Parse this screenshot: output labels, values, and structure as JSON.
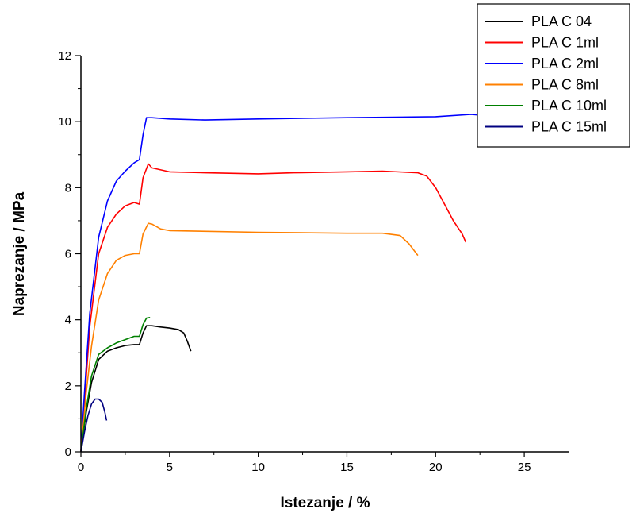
{
  "chart_data": {
    "type": "line",
    "title": "",
    "xlabel": "Istezanje / %",
    "ylabel": "Naprezanje / MPa",
    "xlim": [
      0,
      27.5
    ],
    "ylim": [
      0,
      12
    ],
    "xticks": [
      "0",
      "5",
      "10",
      "15",
      "20",
      "25"
    ],
    "yticks": [
      "0",
      "2",
      "4",
      "6",
      "8",
      "10",
      "12"
    ],
    "grid": false,
    "legend_position": "top-right",
    "series": [
      {
        "name": "PLA C 04",
        "color": "#000000",
        "x": [
          0,
          0.3,
          0.6,
          1.0,
          1.5,
          2.0,
          2.5,
          3.0,
          3.3,
          3.5,
          3.7,
          4.0,
          4.5,
          5.0,
          5.5,
          5.8,
          6.0,
          6.2
        ],
        "y": [
          0,
          1.2,
          2.1,
          2.8,
          3.05,
          3.15,
          3.22,
          3.25,
          3.25,
          3.6,
          3.82,
          3.82,
          3.78,
          3.75,
          3.7,
          3.6,
          3.35,
          3.05
        ]
      },
      {
        "name": "PLA C 1ml",
        "color": "#ff0000",
        "x": [
          0,
          0.2,
          0.5,
          1.0,
          1.5,
          2.0,
          2.5,
          3.0,
          3.3,
          3.5,
          3.8,
          4.0,
          5,
          7,
          10,
          12,
          15,
          17,
          19,
          19.5,
          20,
          20.5,
          21,
          21.5,
          21.7
        ],
        "y": [
          0,
          1.5,
          3.8,
          6.0,
          6.8,
          7.2,
          7.45,
          7.55,
          7.5,
          8.3,
          8.72,
          8.6,
          8.48,
          8.45,
          8.42,
          8.45,
          8.48,
          8.5,
          8.45,
          8.35,
          8.0,
          7.5,
          7.0,
          6.6,
          6.35
        ]
      },
      {
        "name": "PLA C 2ml",
        "color": "#0000ff",
        "x": [
          0,
          0.2,
          0.5,
          1.0,
          1.5,
          2.0,
          2.5,
          3.0,
          3.3,
          3.5,
          3.7,
          4.0,
          5,
          7,
          10,
          15,
          20,
          22,
          22.5
        ],
        "y": [
          0,
          1.8,
          4.2,
          6.5,
          7.6,
          8.2,
          8.5,
          8.75,
          8.85,
          9.6,
          10.12,
          10.12,
          10.08,
          10.05,
          10.08,
          10.12,
          10.15,
          10.22,
          10.2
        ]
      },
      {
        "name": "PLA C 8ml",
        "color": "#ff8000",
        "x": [
          0,
          0.3,
          0.6,
          1.0,
          1.5,
          2.0,
          2.5,
          3.0,
          3.3,
          3.5,
          3.8,
          4.0,
          4.5,
          5,
          10,
          15,
          17,
          18,
          18.5,
          19.0
        ],
        "y": [
          0,
          1.8,
          3.2,
          4.6,
          5.4,
          5.8,
          5.95,
          6.0,
          6.0,
          6.6,
          6.92,
          6.9,
          6.75,
          6.7,
          6.65,
          6.62,
          6.62,
          6.55,
          6.3,
          5.95
        ]
      },
      {
        "name": "PLA C 10ml",
        "color": "#008000",
        "x": [
          0,
          0.3,
          0.6,
          1.0,
          1.5,
          2.0,
          2.5,
          3.0,
          3.3,
          3.5,
          3.7,
          3.9
        ],
        "y": [
          0,
          1.3,
          2.3,
          2.95,
          3.15,
          3.3,
          3.4,
          3.5,
          3.5,
          3.85,
          4.05,
          4.07
        ]
      },
      {
        "name": "PLA C 15ml",
        "color": "#000080",
        "x": [
          0,
          0.2,
          0.4,
          0.6,
          0.8,
          1.0,
          1.2,
          1.35,
          1.45
        ],
        "y": [
          0,
          0.6,
          1.1,
          1.45,
          1.6,
          1.6,
          1.5,
          1.2,
          0.95
        ]
      }
    ]
  }
}
